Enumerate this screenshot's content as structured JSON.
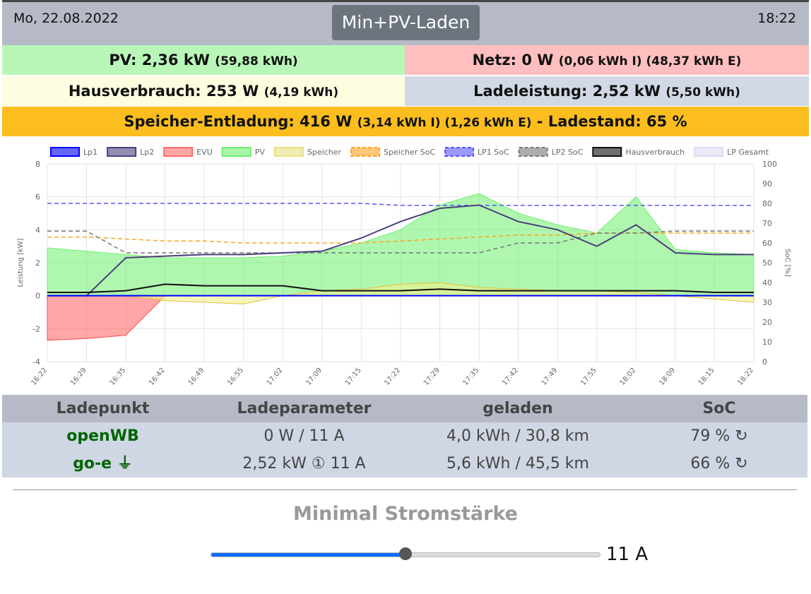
{
  "header": {
    "date": "Mo, 22.08.2022",
    "time": "18:22",
    "mode": "Min+PV-Laden"
  },
  "status": {
    "pv": {
      "main": "PV: 2,36 kW",
      "sub": "(59,88 kWh)",
      "color": "#b9f7b9"
    },
    "netz": {
      "main": "Netz: 0 W",
      "sub": "(0,06 kWh I) (48,37 kWh E)",
      "color": "#ffbfbf"
    },
    "haus": {
      "main": "Hausverbrauch: 253 W",
      "sub": "(4,19 kWh)",
      "color": "#fffde0"
    },
    "lade": {
      "main": "Ladeleistung: 2,52 kW",
      "sub": "(5,50 kWh)",
      "color": "#d1d8e6"
    },
    "speicher": {
      "main": "Speicher-Entladung: 416 W",
      "sub": "(3,14 kWh I) (1,26 kWh E)",
      "tail": "- Ladestand: 65 %",
      "color": "#fcbe1e"
    }
  },
  "chart_data": {
    "type": "line",
    "ylabel": "Leistung [kW]",
    "y2label": "SoC [%]",
    "ylim": [
      -4,
      8
    ],
    "y2lim": [
      0,
      100
    ],
    "yticks": [
      "8",
      "6",
      "4",
      "2",
      "0",
      "-2",
      "-4"
    ],
    "y2ticks": [
      "100",
      "90",
      "80",
      "70",
      "60",
      "50",
      "40",
      "30",
      "20",
      "10",
      "0"
    ],
    "x": [
      "16:22",
      "16:29",
      "16:35",
      "16:42",
      "16:49",
      "16:55",
      "17:02",
      "17:09",
      "17:15",
      "17:22",
      "17:29",
      "17:35",
      "17:42",
      "17:49",
      "17:55",
      "18:02",
      "18:09",
      "18:15",
      "18:22"
    ],
    "legend": [
      {
        "name": "Lp1",
        "color": "#0000ff",
        "dash": false
      },
      {
        "name": "Lp2",
        "color": "#4c3f7d",
        "dash": false
      },
      {
        "name": "EVU",
        "color": "#ff6b6b",
        "dash": false
      },
      {
        "name": "PV",
        "color": "#6ef06e",
        "dash": false
      },
      {
        "name": "Speicher",
        "color": "#e8e080",
        "dash": false
      },
      {
        "name": "Speicher SoC",
        "color": "#ffa21e",
        "dash": true
      },
      {
        "name": "LP1 SoC",
        "color": "#5555ff",
        "dash": true
      },
      {
        "name": "LP2 SoC",
        "color": "#777777",
        "dash": true
      },
      {
        "name": "Hausverbrauch",
        "color": "#111111",
        "dash": false
      },
      {
        "name": "LP Gesamt",
        "color": "#dcdcf5",
        "dash": false
      }
    ],
    "series": {
      "PV": [
        2.9,
        2.7,
        2.5,
        2.3,
        2.3,
        2.3,
        2.4,
        2.7,
        3.2,
        4.0,
        5.5,
        6.2,
        5.0,
        4.3,
        3.8,
        6.0,
        2.8,
        2.6,
        2.5
      ],
      "EVU": [
        -2.7,
        -2.6,
        -2.4,
        0,
        0,
        0,
        0,
        0,
        0,
        0,
        0,
        0,
        0,
        0,
        0,
        0,
        0,
        0,
        0
      ],
      "Speicher": [
        0,
        0,
        0,
        -0.3,
        -0.4,
        -0.5,
        0,
        0.3,
        0.4,
        0.7,
        0.8,
        0.5,
        0.4,
        0.3,
        0.3,
        0.2,
        0,
        -0.2,
        -0.4
      ],
      "Lp1": [
        0,
        0,
        0,
        0,
        0,
        0,
        0,
        0,
        0,
        0,
        0,
        0,
        0,
        0,
        0,
        0,
        0,
        0,
        0
      ],
      "Lp2": [
        0,
        0,
        2.3,
        2.4,
        2.5,
        2.5,
        2.6,
        2.7,
        3.5,
        4.5,
        5.3,
        5.5,
        4.5,
        4.0,
        3.0,
        4.3,
        2.6,
        2.5,
        2.5
      ],
      "Hausverbrauch": [
        0.2,
        0.2,
        0.3,
        0.7,
        0.6,
        0.6,
        0.6,
        0.3,
        0.3,
        0.3,
        0.4,
        0.3,
        0.3,
        0.3,
        0.3,
        0.3,
        0.3,
        0.2,
        0.2
      ],
      "Speicher SoC": [
        63,
        63,
        62,
        61,
        61,
        60,
        60,
        60,
        60,
        61,
        62,
        63,
        64,
        64,
        65,
        65,
        65,
        65,
        65
      ],
      "LP1 SoC": [
        80,
        80,
        80,
        80,
        80,
        80,
        80,
        80,
        80,
        79,
        79,
        79,
        79,
        79,
        79,
        79,
        79,
        79,
        79
      ],
      "LP2 SoC": [
        66,
        66,
        55,
        55,
        55,
        55,
        55,
        55,
        55,
        55,
        55,
        55,
        60,
        60,
        65,
        65,
        66,
        66,
        66
      ]
    }
  },
  "table": {
    "headers": [
      "Ladepunkt",
      "Ladeparameter",
      "geladen",
      "SoC"
    ],
    "rows": [
      {
        "name": "openWB",
        "param": "0 W / 11 A",
        "geladen": "4,0 kWh / 30,8 km",
        "soc": "79 %"
      },
      {
        "name": "go-e",
        "param": "2,52 kW ① 11 A",
        "geladen": "5,6 kWh / 45,5 km",
        "soc": "66 %"
      }
    ]
  },
  "slider": {
    "label": "Minimal Stromstärke",
    "value": "11 A",
    "fraction": 0.5
  }
}
